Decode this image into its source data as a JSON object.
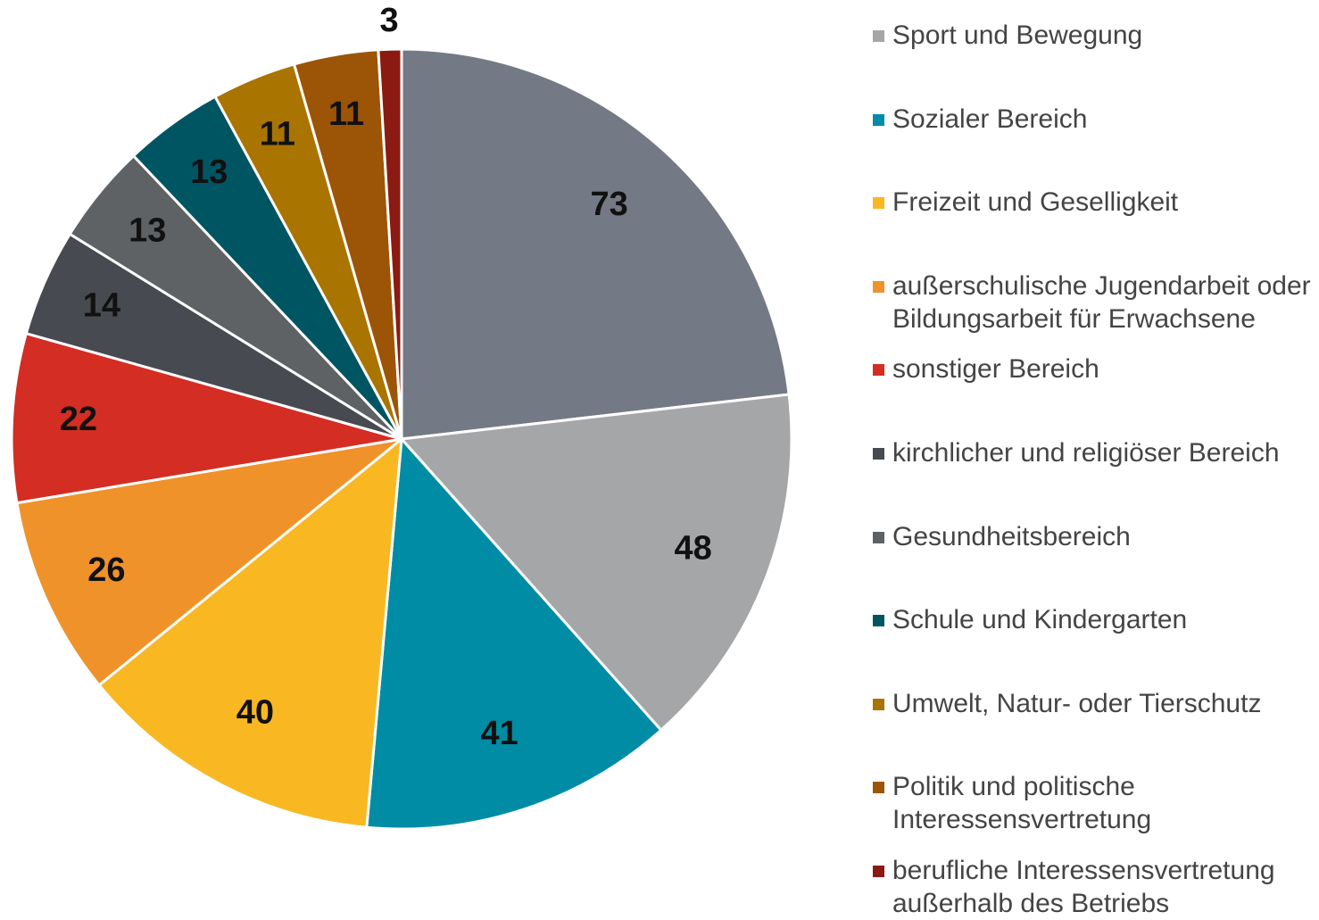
{
  "chart_data": {
    "type": "pie",
    "categories": [
      null,
      "Sport und Bewegung",
      "Sozialer Bereich",
      "Freizeit und Geselligkeit",
      "außerschulische Jugendarbeit oder Bildungsarbeit für Erwachsene",
      "sonstiger Bereich",
      "kirchlicher und religiöser Bereich",
      "Gesundheitsbereich",
      "Schule und Kindergarten",
      "Umwelt, Natur- oder Tierschutz",
      "Politik und politische Interessensvertretung",
      "berufliche Interessensvertretung außerhalb des Betriebs"
    ],
    "values": [
      73,
      48,
      41,
      40,
      26,
      22,
      14,
      13,
      13,
      11,
      11,
      3
    ],
    "colors": [
      "#737a85",
      "#a5a6a8",
      "#008ca5",
      "#f9b822",
      "#f0922a",
      "#d42d23",
      "#474a51",
      "#5f6265",
      "#005563",
      "#a97400",
      "#9c5406",
      "#8a1a12"
    ],
    "legend": "right"
  }
}
